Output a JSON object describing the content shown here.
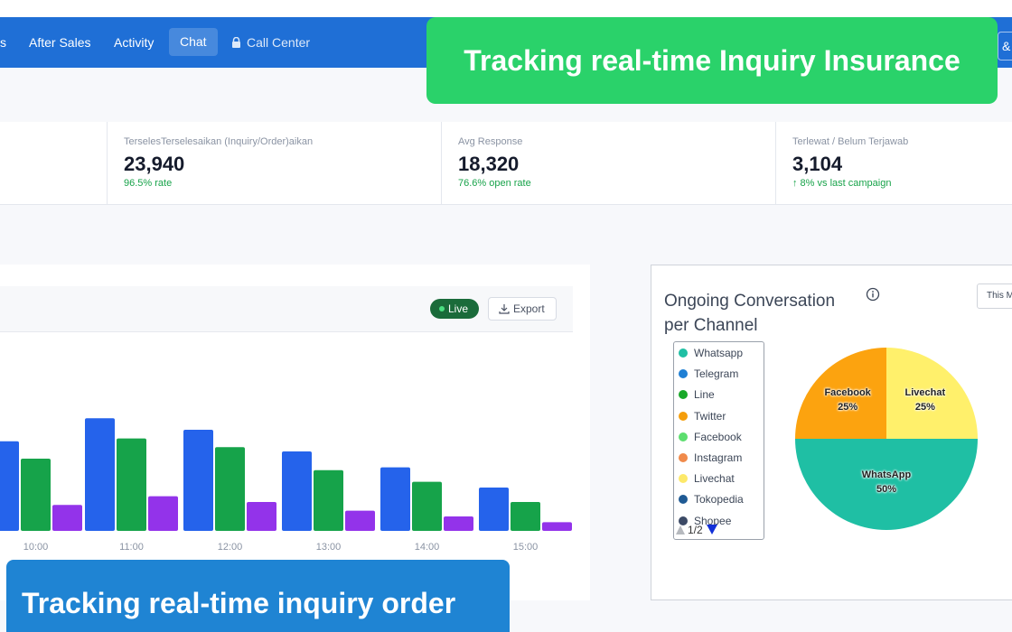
{
  "nav": {
    "items": [
      {
        "label": "s"
      },
      {
        "label": "After Sales"
      },
      {
        "label": "Activity"
      },
      {
        "label": "Chat"
      },
      {
        "label": "Call Center"
      }
    ],
    "right_button": "&"
  },
  "banners": {
    "insurance": "Tracking real-time Inquiry Insurance",
    "order": "Tracking real-time inquiry order"
  },
  "stats": [
    {
      "label": "TerselesTerselesaikan (Inquiry/Order)aikan",
      "value": "23,940",
      "sub": "96.5% rate"
    },
    {
      "label": "Avg Response",
      "value": "18,320",
      "sub": "76.6% open rate"
    },
    {
      "label": "Terlewat / Belum Terjawab",
      "value": "3,104",
      "sub": "↑ 8% vs last campaign"
    }
  ],
  "activity_card": {
    "live_label": "Live",
    "export_label": "Export"
  },
  "bar_chart_data": {
    "type": "bar",
    "categories": [
      "10:00",
      "11:00",
      "12:00",
      "13:00",
      "14:00",
      "15:00"
    ],
    "series": [
      {
        "values": [
          62,
          78,
          70,
          55,
          44,
          30
        ],
        "color": "#2563eb"
      },
      {
        "values": [
          50,
          64,
          58,
          42,
          34,
          20
        ],
        "color": "#16a34a"
      },
      {
        "values": [
          18,
          24,
          20,
          14,
          10,
          6
        ],
        "color": "#9333ea"
      }
    ],
    "ylim": [
      0,
      100
    ],
    "leading_partial": {
      "values": [
        62,
        50,
        18
      ]
    }
  },
  "pie_card": {
    "title": "Ongoing Conversation per Channel",
    "period_label": "This Month",
    "pager": "1/2"
  },
  "chart_data": {
    "type": "pie",
    "legend": [
      {
        "name": "Whatsapp",
        "color": "#1fbfa4"
      },
      {
        "name": "Telegram",
        "color": "#1f7fd4"
      },
      {
        "name": "Line",
        "color": "#18a829"
      },
      {
        "name": "Twitter",
        "color": "#f59e0b"
      },
      {
        "name": "Facebook",
        "color": "#5cde6e"
      },
      {
        "name": "Instagram",
        "color": "#f08a4b"
      },
      {
        "name": "Livechat",
        "color": "#fde96a"
      },
      {
        "name": "Tokopedia",
        "color": "#1f5a94"
      },
      {
        "name": "Shopee",
        "color": "#3c4a66"
      }
    ],
    "slices": [
      {
        "name": "Livechat",
        "value": 25,
        "label": "25%",
        "color": "#fff06b"
      },
      {
        "name": "WhatsApp",
        "value": 50,
        "label": "50%",
        "color": "#1fbfa4"
      },
      {
        "name": "Facebook",
        "value": 25,
        "label": "25%",
        "color": "#fca30f"
      }
    ],
    "legend_placement": "left"
  }
}
